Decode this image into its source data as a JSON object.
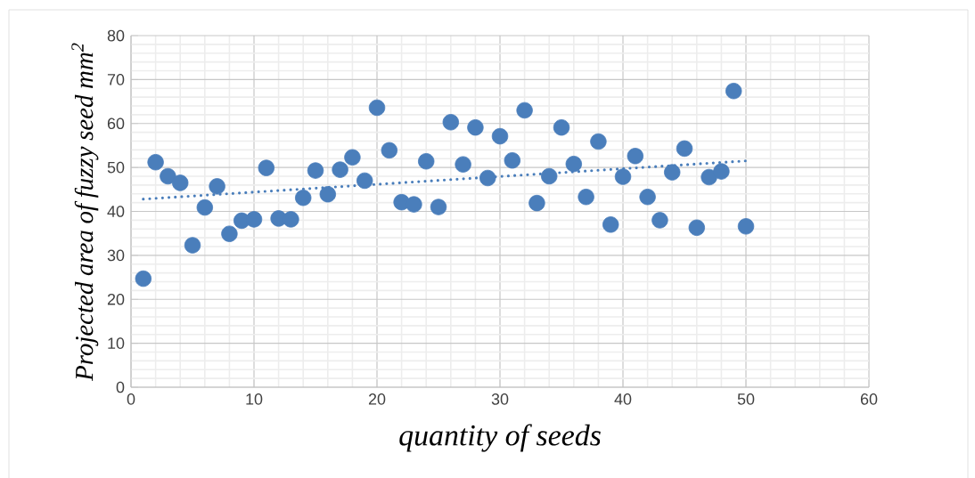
{
  "chart_data": {
    "type": "scatter",
    "xlabel": "quantity of seeds",
    "ylabel": "Projected area of fuzzy seed mm$^{2}$",
    "x": [
      1,
      2,
      3,
      4,
      5,
      6,
      7,
      8,
      9,
      10,
      11,
      12,
      13,
      14,
      15,
      16,
      17,
      18,
      19,
      20,
      21,
      22,
      23,
      24,
      25,
      26,
      27,
      28,
      29,
      30,
      31,
      32,
      33,
      34,
      35,
      36,
      37,
      38,
      39,
      40,
      41,
      42,
      43,
      44,
      45,
      46,
      47,
      48,
      49,
      50
    ],
    "series": [
      {
        "color": "#4a7ebb",
        "values": [
          24.7,
          51.2,
          48.0,
          46.5,
          32.3,
          40.9,
          45.7,
          34.9,
          37.9,
          38.2,
          49.9,
          38.4,
          38.2,
          43.1,
          49.3,
          43.9,
          49.5,
          52.3,
          47.0,
          63.6,
          53.9,
          42.1,
          41.6,
          51.4,
          41.0,
          60.3,
          50.7,
          59.1,
          47.6,
          57.1,
          51.6,
          63.0,
          41.9,
          48.0,
          59.1,
          50.8,
          43.3,
          55.9,
          37.0,
          47.9,
          52.6,
          43.3,
          38.0,
          48.9,
          54.3,
          36.3,
          47.8,
          49.1,
          67.4,
          36.6
        ]
      },
      {
        "type": "line",
        "color": "#4a7ebb",
        "x": [
          1,
          50
        ],
        "values": [
          42.8,
          51.5
        ],
        "marker": "none",
        "line_style": "dotted"
      }
    ],
    "xlim": [
      0,
      60
    ],
    "ylim": [
      0,
      80
    ],
    "xticks": [
      0,
      10,
      20,
      30,
      40,
      50,
      60
    ],
    "yticks": [
      0,
      10,
      20,
      30,
      40,
      50,
      60,
      70,
      80
    ],
    "grid": true,
    "marker": "circle"
  }
}
